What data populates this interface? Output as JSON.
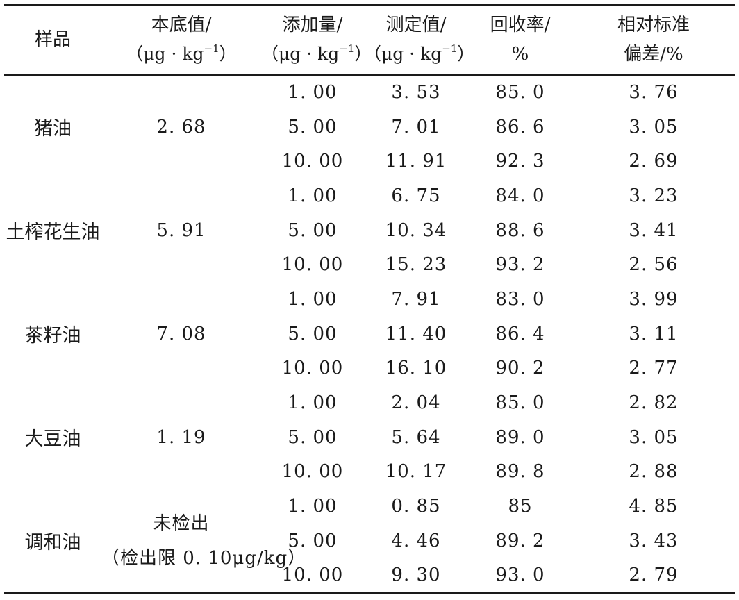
{
  "header": {
    "sample": "样品",
    "base_label": "本底值/",
    "added_label": "添加量/",
    "measured_label": "测定值/",
    "recovery_label": "回收率/",
    "recovery_unit": "%",
    "rsd_label_line1": "相对标准",
    "rsd_label_line2": "偏差/%",
    "unit_open": "（μg · kg",
    "unit_exp": "−1",
    "unit_close": "）"
  },
  "groups": [
    {
      "sample": "猪油",
      "base": "2. 68",
      "base_note": "",
      "rows": [
        {
          "added": "1. 00",
          "measured": "3. 53",
          "recovery": "85. 0",
          "rsd": "3. 76"
        },
        {
          "added": "5. 00",
          "measured": "7. 01",
          "recovery": "86. 6",
          "rsd": "3. 05"
        },
        {
          "added": "10. 00",
          "measured": "11. 91",
          "recovery": "92. 3",
          "rsd": "2. 69"
        }
      ]
    },
    {
      "sample": "土榨花生油",
      "base": "5. 91",
      "base_note": "",
      "rows": [
        {
          "added": "1. 00",
          "measured": "6. 75",
          "recovery": "84. 0",
          "rsd": "3. 23"
        },
        {
          "added": "5. 00",
          "measured": "10. 34",
          "recovery": "88. 6",
          "rsd": "3. 41"
        },
        {
          "added": "10. 00",
          "measured": "15. 23",
          "recovery": "93. 2",
          "rsd": "2. 56"
        }
      ]
    },
    {
      "sample": "茶籽油",
      "base": "7. 08",
      "base_note": "",
      "rows": [
        {
          "added": "1. 00",
          "measured": "7. 91",
          "recovery": "83. 0",
          "rsd": "3. 99"
        },
        {
          "added": "5. 00",
          "measured": "11. 40",
          "recovery": "86. 4",
          "rsd": "3. 11"
        },
        {
          "added": "10. 00",
          "measured": "16. 10",
          "recovery": "90. 2",
          "rsd": "2. 77"
        }
      ]
    },
    {
      "sample": "大豆油",
      "base": "1. 19",
      "base_note": "",
      "rows": [
        {
          "added": "1. 00",
          "measured": "2. 04",
          "recovery": "85. 0",
          "rsd": "2. 82"
        },
        {
          "added": "5. 00",
          "measured": "5. 64",
          "recovery": "89. 0",
          "rsd": "3. 05"
        },
        {
          "added": "10. 00",
          "measured": "10. 17",
          "recovery": "89. 8",
          "rsd": "2. 88"
        }
      ]
    },
    {
      "sample": "调和油",
      "base": "未检出",
      "base_note": "（检出限 0. 10μg/kg）",
      "rows": [
        {
          "added": "1. 00",
          "measured": "0. 85",
          "recovery": "85",
          "rsd": "4. 85"
        },
        {
          "added": "5. 00",
          "measured": "4. 46",
          "recovery": "89. 2",
          "rsd": "3. 43"
        },
        {
          "added": "10. 00",
          "measured": "9. 30",
          "recovery": "93. 0",
          "rsd": "2. 79"
        }
      ]
    }
  ]
}
